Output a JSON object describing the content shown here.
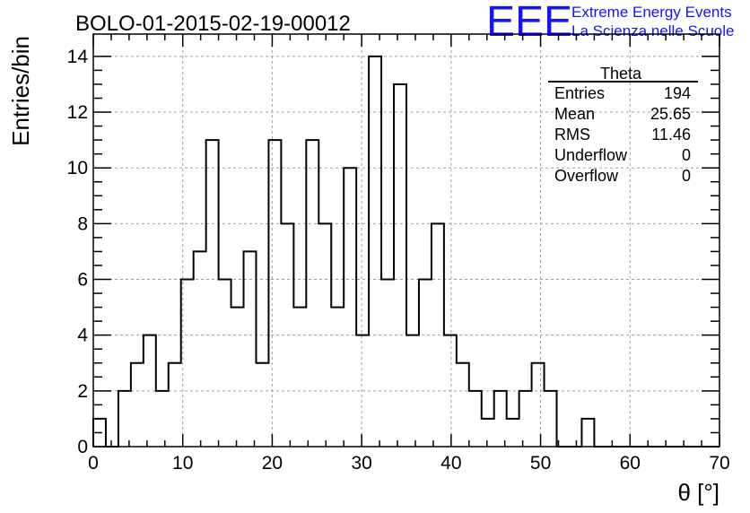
{
  "chart_data": {
    "type": "bar",
    "title": "BOLO-01-2015-02-19-00012",
    "xlabel": "θ [°]",
    "ylabel": "Entries/bin",
    "xlim": [
      0,
      70
    ],
    "ylim": [
      0,
      14.8
    ],
    "bin_width": 1.4,
    "values": [
      1,
      0,
      2,
      3,
      4,
      2,
      3,
      6,
      7,
      11,
      6,
      5,
      7,
      3,
      11,
      8,
      5,
      11,
      8,
      5,
      10,
      4,
      14,
      6,
      13,
      4,
      6,
      8,
      4,
      3,
      2,
      1,
      2,
      1,
      2,
      3,
      2,
      0,
      0,
      1,
      0,
      0,
      0,
      0,
      0,
      0,
      0,
      0,
      0,
      0
    ],
    "x_ticks": [
      "0",
      "10",
      "20",
      "30",
      "40",
      "50",
      "60",
      "70"
    ],
    "y_ticks": [
      "0",
      "2",
      "4",
      "6",
      "8",
      "10",
      "12",
      "14"
    ],
    "grid": true,
    "legend": "none"
  },
  "logo": {
    "mark": "EEE",
    "line1": "Extreme Energy Events",
    "line2": "La Scienza nelle Scuole"
  },
  "stats_box": {
    "title": "Theta",
    "rows": [
      {
        "label": "Entries",
        "value": "194"
      },
      {
        "label": "Mean",
        "value": "25.65"
      },
      {
        "label": "RMS",
        "value": "11.46"
      },
      {
        "label": "Underflow",
        "value": "0"
      },
      {
        "label": "Overflow",
        "value": "0"
      }
    ]
  }
}
